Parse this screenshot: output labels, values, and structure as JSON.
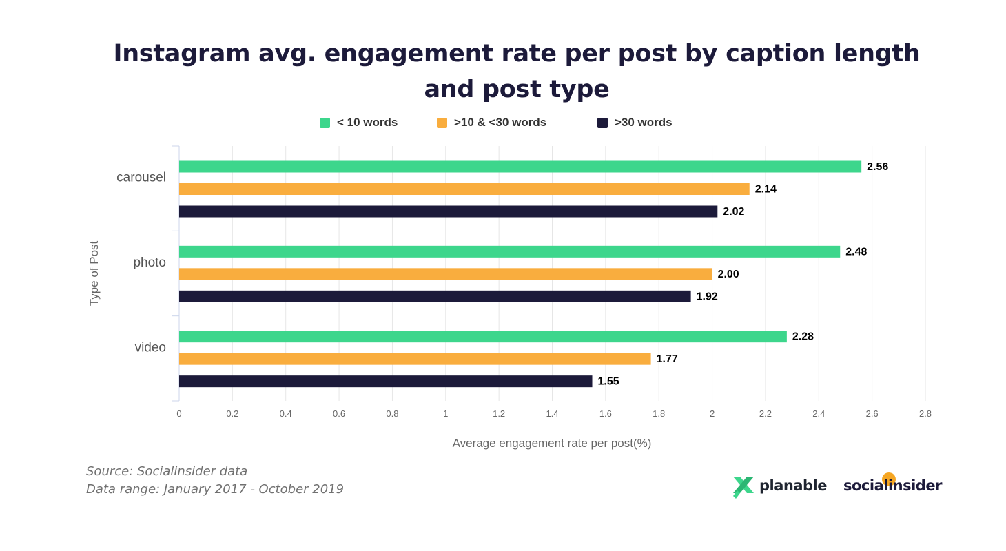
{
  "chart_data": {
    "type": "bar",
    "orientation": "horizontal",
    "title": "Instagram avg. engagement rate per post by caption length and post type",
    "title_lines": [
      "Instagram avg. engagement rate per post by caption length",
      "and post type"
    ],
    "categories": [
      "carousel",
      "photo",
      "video"
    ],
    "series": [
      {
        "name": "< 10 words",
        "color": "#3dd68c",
        "values": [
          2.56,
          2.48,
          2.28
        ]
      },
      {
        "name": ">10 & <30 words",
        "color": "#f9ad3e",
        "values": [
          2.14,
          2.0,
          1.77
        ]
      },
      {
        "name": ">30 words",
        "color": "#1c1a3a",
        "values": [
          2.02,
          1.92,
          1.55
        ]
      }
    ],
    "data_labels": [
      [
        "2.56",
        "2.48",
        "2.28"
      ],
      [
        "2.14",
        "2.00",
        "1.77"
      ],
      [
        "2.02",
        "1.92",
        "1.55"
      ]
    ],
    "xlabel": "Average engagement rate per post(%)",
    "ylabel": "Type of Post",
    "xlim": [
      0,
      2.8
    ],
    "xticks": [
      "0",
      "0.2",
      "0.4",
      "0.6",
      "0.8",
      "1",
      "1.2",
      "1.4",
      "1.6",
      "1.8",
      "2",
      "2.2",
      "2.4",
      "2.6",
      "2.8"
    ],
    "grid": true,
    "legend_position": "top"
  },
  "footer": {
    "source": "Source: Socialinsider data",
    "range": "Data range: January 2017 - October 2019",
    "logo_planable": "planable",
    "logo_socialinsider": "socialinsider"
  }
}
